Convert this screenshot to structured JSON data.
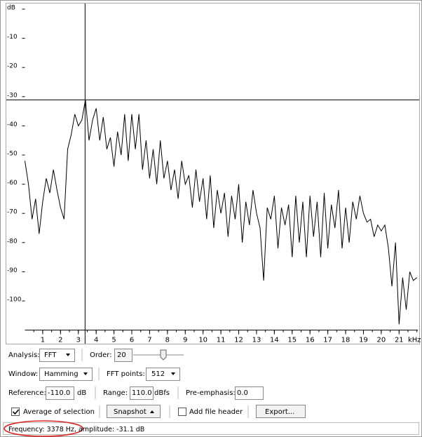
{
  "chart_data": {
    "type": "line",
    "ylim": [
      -110,
      0
    ],
    "yticks": [
      {
        "value": 0,
        "label": "dB"
      },
      -10,
      -20,
      -30,
      -40,
      -50,
      -60,
      -70,
      -80,
      -90,
      -100
    ],
    "xlim": [
      0,
      22.05
    ],
    "xticks": [
      1,
      2,
      3,
      4,
      5,
      6,
      7,
      8,
      9,
      10,
      11,
      12,
      13,
      14,
      15,
      16,
      17,
      18,
      19,
      20,
      21
    ],
    "x_unit": "kHz",
    "color": "#000000",
    "x": [
      0,
      0.2,
      0.4,
      0.6,
      0.8,
      1,
      1.2,
      1.4,
      1.6,
      1.8,
      2,
      2.2,
      2.4,
      2.6,
      2.8,
      3,
      3.2,
      3.4,
      3.6,
      3.8,
      4,
      4.2,
      4.4,
      4.6,
      4.8,
      5,
      5.2,
      5.4,
      5.6,
      5.8,
      6,
      6.2,
      6.4,
      6.6,
      6.8,
      7,
      7.2,
      7.4,
      7.6,
      7.8,
      8,
      8.2,
      8.4,
      8.6,
      8.8,
      9,
      9.2,
      9.4,
      9.6,
      9.8,
      10,
      10.2,
      10.4,
      10.6,
      10.8,
      11,
      11.2,
      11.4,
      11.6,
      11.8,
      12,
      12.2,
      12.4,
      12.6,
      12.8,
      13,
      13.2,
      13.4,
      13.6,
      13.8,
      14,
      14.2,
      14.4,
      14.6,
      14.8,
      15,
      15.2,
      15.4,
      15.6,
      15.8,
      16,
      16.2,
      16.4,
      16.6,
      16.8,
      17,
      17.2,
      17.4,
      17.6,
      17.8,
      18,
      18.2,
      18.4,
      18.6,
      18.8,
      19,
      19.2,
      19.4,
      19.6,
      19.8,
      20,
      20.2,
      20.4,
      20.6,
      20.8,
      21,
      21.2,
      21.4,
      21.6,
      21.8,
      22
    ],
    "values": [
      -52,
      -60,
      -72,
      -65,
      -77,
      -66,
      -58,
      -63,
      -55,
      -62,
      -68,
      -72,
      -48,
      -43,
      -36,
      -40,
      -38,
      -31,
      -45,
      -38,
      -34,
      -45,
      -37,
      -48,
      -44,
      -54,
      -42,
      -50,
      -36,
      -52,
      -36,
      -48,
      -36,
      -55,
      -45,
      -58,
      -48,
      -60,
      -45,
      -58,
      -52,
      -62,
      -55,
      -65,
      -52,
      -60,
      -57,
      -68,
      -55,
      -66,
      -58,
      -72,
      -57,
      -75,
      -62,
      -70,
      -63,
      -78,
      -64,
      -72,
      -60,
      -80,
      -66,
      -74,
      -62,
      -70,
      -75,
      -93,
      -68,
      -72,
      -64,
      -82,
      -68,
      -74,
      -67,
      -85,
      -64,
      -80,
      -66,
      -85,
      -64,
      -78,
      -66,
      -85,
      -63,
      -82,
      -67,
      -75,
      -62,
      -82,
      -68,
      -80,
      -66,
      -72,
      -64,
      -70,
      -73,
      -72,
      -78,
      -74,
      -76,
      -74,
      -82,
      -95,
      -80,
      -108,
      -92,
      -103,
      -90,
      -93,
      -92
    ]
  },
  "controls": {
    "analysis_label": "Analysis:",
    "analysis": "FFT",
    "order_label": "Order:",
    "order": 20,
    "window_label": "Window:",
    "window": "Hamming",
    "fft_points_label": "FFT points:",
    "fft_points": 512,
    "reference_label": "Reference:",
    "reference": "-110.0",
    "reference_unit": "dB",
    "range_label": "Range:",
    "range": "110.0",
    "range_unit": "dBfs",
    "pre_emphasis_label": "Pre-emphasis:",
    "pre_emphasis": "0.0",
    "average_label": "Average of selection",
    "snapshot": "Snapshot",
    "add_header_label": "Add file header",
    "export": "Export..."
  },
  "status": {
    "frequency_label": "Frequency:",
    "frequency": 3378,
    "frequency_unit": "Hz,",
    "amplitude_label": "amplitude:",
    "amplitude": -31.1,
    "amplitude_unit": "dB"
  }
}
